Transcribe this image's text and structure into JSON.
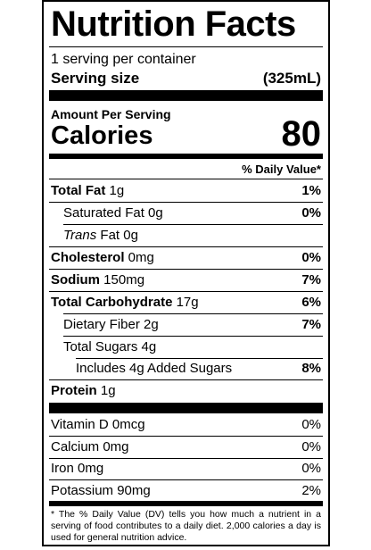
{
  "label": {
    "title": "Nutrition Facts",
    "servings_per_container": "1 serving per container",
    "serving_size_label": "Serving size",
    "serving_size_value": "(325mL)",
    "amount_per_serving": "Amount Per Serving",
    "calories_label": "Calories",
    "calories_value": "80",
    "dv_header": "% Daily Value*",
    "rows": [
      {
        "name": "Total Fat",
        "amount": " 1g",
        "dv": "1%"
      },
      {
        "name": "Saturated Fat 0g",
        "dv": "0%"
      },
      {
        "name_italic": "Trans",
        "name_rest": " Fat 0g"
      },
      {
        "name": "Cholesterol",
        "amount": " 0mg",
        "dv": "0%"
      },
      {
        "name": "Sodium",
        "amount": " 150mg",
        "dv": "7%"
      },
      {
        "name": "Total Carbohydrate",
        "amount": " 17g",
        "dv": "6%"
      },
      {
        "name": "Dietary Fiber 2g",
        "dv": "7%"
      },
      {
        "name": "Total Sugars 4g"
      },
      {
        "name": "Includes 4g Added Sugars",
        "dv": "8%"
      },
      {
        "name": "Protein",
        "amount": " 1g"
      }
    ],
    "vitamins": [
      {
        "name": "Vitamin D 0mcg",
        "dv": "0%"
      },
      {
        "name": "Calcium 0mg",
        "dv": "0%"
      },
      {
        "name": "Iron 0mg",
        "dv": "0%"
      },
      {
        "name": "Potassium 90mg",
        "dv": "2%"
      }
    ],
    "footnote": "* The % Daily Value (DV) tells you how much a nutrient in a serving of food contributes to a daily diet. 2,000 calories a day is used for general nutrition advice."
  }
}
